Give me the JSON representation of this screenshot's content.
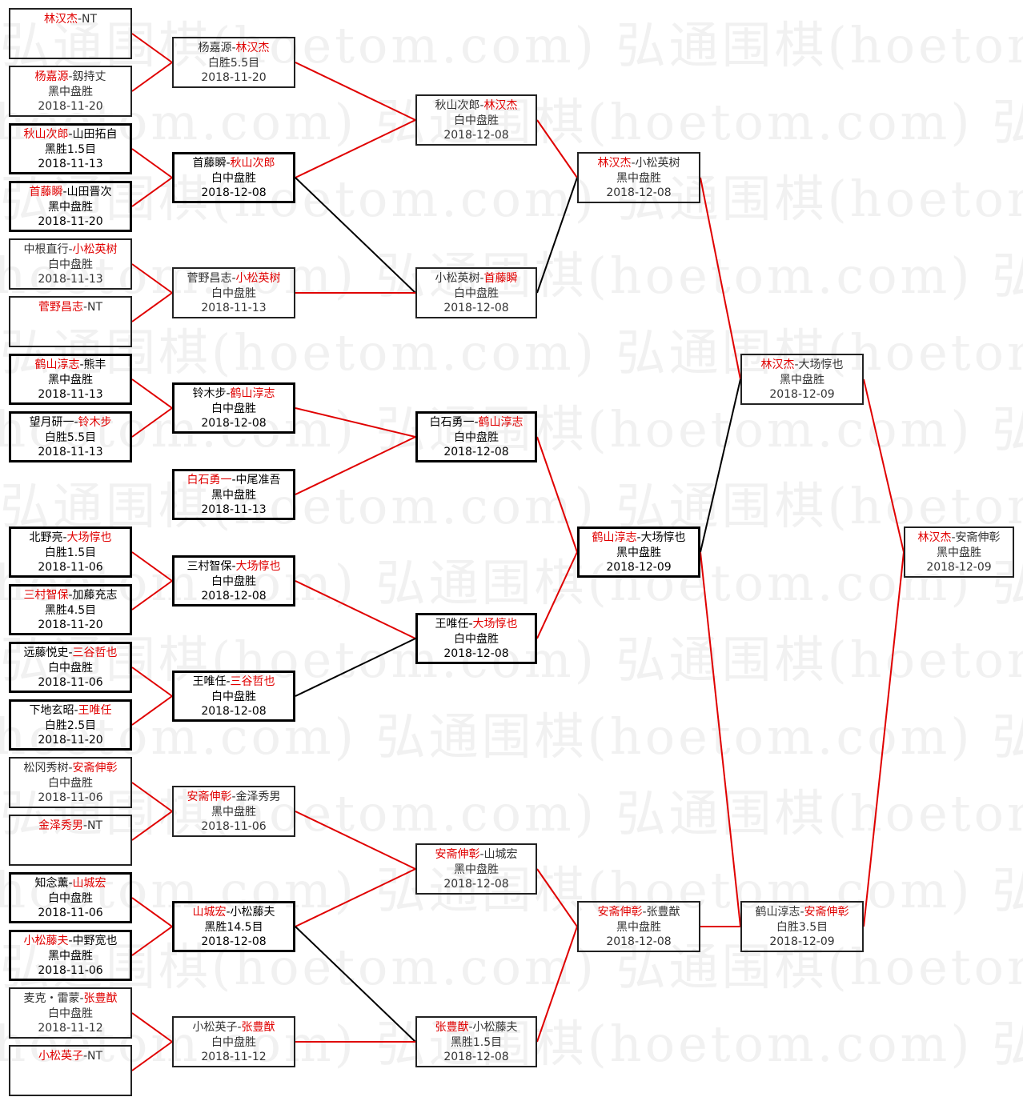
{
  "watermark": "弘通围棋(hoetom.com)",
  "colors": {
    "winner": "#e00000",
    "winner_line": "#e00000",
    "loser_line": "#000000"
  },
  "separator": "-",
  "columns": [
    [
      {
        "p1": "林汉杰",
        "p2": "NT",
        "winner": 1,
        "result": "",
        "date": "",
        "bold": false
      },
      {
        "p1": "杨嘉源",
        "p2": "釼持丈",
        "winner": 1,
        "result": "黑中盘胜",
        "date": "2018-11-20",
        "bold": false
      },
      {
        "p1": "秋山次郎",
        "p2": "山田拓自",
        "winner": 1,
        "result": "黑胜1.5目",
        "date": "2018-11-13",
        "bold": true
      },
      {
        "p1": "首藤瞬",
        "p2": "山田晋次",
        "winner": 1,
        "result": "黑中盘胜",
        "date": "2018-11-20",
        "bold": true
      },
      {
        "p1": "中根直行",
        "p2": "小松英树",
        "winner": 2,
        "result": "白中盘胜",
        "date": "2018-11-13",
        "bold": false
      },
      {
        "p1": "菅野昌志",
        "p2": "NT",
        "winner": 1,
        "result": "",
        "date": "",
        "bold": false
      },
      {
        "p1": "鹤山淳志",
        "p2": "熊丰",
        "winner": 1,
        "result": "黑中盘胜",
        "date": "2018-11-13",
        "bold": true
      },
      {
        "p1": "望月研一",
        "p2": "铃木步",
        "winner": 2,
        "result": "白胜5.5目",
        "date": "2018-11-13",
        "bold": true
      },
      {
        "p1": "北野亮",
        "p2": "大场惇也",
        "winner": 2,
        "result": "白胜1.5目",
        "date": "2018-11-06",
        "bold": true
      },
      {
        "p1": "三村智保",
        "p2": "加藤充志",
        "winner": 1,
        "result": "黑胜4.5目",
        "date": "2018-11-20",
        "bold": true
      },
      {
        "p1": "远藤悦史",
        "p2": "三谷哲也",
        "winner": 2,
        "result": "白中盘胜",
        "date": "2018-11-06",
        "bold": true
      },
      {
        "p1": "下地玄昭",
        "p2": "王唯任",
        "winner": 2,
        "result": "白胜2.5目",
        "date": "2018-11-20",
        "bold": true
      },
      {
        "p1": "松冈秀树",
        "p2": "安斋伸彰",
        "winner": 2,
        "result": "白中盘胜",
        "date": "2018-11-06",
        "bold": false
      },
      {
        "p1": "金泽秀男",
        "p2": "NT",
        "winner": 1,
        "result": "",
        "date": "",
        "bold": false
      },
      {
        "p1": "知念薰",
        "p2": "山城宏",
        "winner": 2,
        "result": "白中盘胜",
        "date": "2018-11-06",
        "bold": true
      },
      {
        "p1": "小松藤夫",
        "p2": "中野宽也",
        "winner": 1,
        "result": "黑中盘胜",
        "date": "2018-11-06",
        "bold": true
      },
      {
        "p1": "麦克・雷蒙",
        "p2": "张豊猷",
        "winner": 2,
        "result": "白中盘胜",
        "date": "2018-11-12",
        "bold": false
      },
      {
        "p1": "小松英子",
        "p2": "NT",
        "winner": 1,
        "result": "",
        "date": "",
        "bold": false
      }
    ],
    [
      {
        "p1": "杨嘉源",
        "p2": "林汉杰",
        "winner": 2,
        "result": "白胜5.5目",
        "date": "2018-11-20",
        "bold": false
      },
      {
        "p1": "首藤瞬",
        "p2": "秋山次郎",
        "winner": 2,
        "result": "白中盘胜",
        "date": "2018-12-08",
        "bold": true
      },
      {
        "p1": "菅野昌志",
        "p2": "小松英树",
        "winner": 2,
        "result": "白中盘胜",
        "date": "2018-11-13",
        "bold": false
      },
      {
        "p1": "铃木步",
        "p2": "鹤山淳志",
        "winner": 2,
        "result": "白中盘胜",
        "date": "2018-12-08",
        "bold": true
      },
      {
        "p1": "白石勇一",
        "p2": "中尾准吾",
        "winner": 1,
        "result": "黑中盘胜",
        "date": "2018-11-13",
        "bold": true
      },
      {
        "p1": "三村智保",
        "p2": "大场惇也",
        "winner": 2,
        "result": "白中盘胜",
        "date": "2018-12-08",
        "bold": true
      },
      {
        "p1": "王唯任",
        "p2": "三谷哲也",
        "winner": 2,
        "result": "白中盘胜",
        "date": "2018-12-08",
        "bold": true
      },
      {
        "p1": "安斋伸彰",
        "p2": "金泽秀男",
        "winner": 1,
        "result": "黑中盘胜",
        "date": "2018-11-06",
        "bold": false
      },
      {
        "p1": "山城宏",
        "p2": "小松藤夫",
        "winner": 1,
        "result": "黑胜14.5目",
        "date": "2018-12-08",
        "bold": true
      },
      {
        "p1": "小松英子",
        "p2": "张豊猷",
        "winner": 2,
        "result": "白中盘胜",
        "date": "2018-11-12",
        "bold": false
      }
    ],
    [
      {
        "p1": "秋山次郎",
        "p2": "林汉杰",
        "winner": 2,
        "result": "白中盘胜",
        "date": "2018-12-08",
        "bold": false
      },
      {
        "p1": "小松英树",
        "p2": "首藤瞬",
        "winner": 2,
        "result": "白中盘胜",
        "date": "2018-12-08",
        "bold": false
      },
      {
        "p1": "白石勇一",
        "p2": "鹤山淳志",
        "winner": 2,
        "result": "白中盘胜",
        "date": "2018-12-08",
        "bold": true
      },
      {
        "p1": "王唯任",
        "p2": "大场惇也",
        "winner": 2,
        "result": "白中盘胜",
        "date": "2018-12-08",
        "bold": true
      },
      {
        "p1": "安斋伸彰",
        "p2": "山城宏",
        "winner": 1,
        "result": "黑中盘胜",
        "date": "2018-12-08",
        "bold": false
      },
      {
        "p1": "张豊猷",
        "p2": "小松藤夫",
        "winner": 1,
        "result": "黑胜1.5目",
        "date": "2018-12-08",
        "bold": false
      }
    ],
    [
      {
        "p1": "林汉杰",
        "p2": "小松英树",
        "winner": 1,
        "result": "黑中盘胜",
        "date": "2018-12-08",
        "bold": false
      },
      {
        "p1": "鹤山淳志",
        "p2": "大场惇也",
        "winner": 1,
        "result": "黑中盘胜",
        "date": "2018-12-09",
        "bold": true
      },
      {
        "p1": "安斋伸彰",
        "p2": "张豊猷",
        "winner": 1,
        "result": "黑中盘胜",
        "date": "2018-12-08",
        "bold": false
      }
    ],
    [
      {
        "p1": "林汉杰",
        "p2": "大场惇也",
        "winner": 1,
        "result": "黑中盘胜",
        "date": "2018-12-09",
        "bold": false
      },
      {
        "p1": "鹤山淳志",
        "p2": "安斋伸彰",
        "winner": 2,
        "result": "白胜3.5目",
        "date": "2018-12-09",
        "bold": false
      }
    ],
    [
      {
        "p1": "林汉杰",
        "p2": "安斋伸彰",
        "winner": 1,
        "result": "黑中盘胜",
        "date": "2018-12-09",
        "bold": false
      }
    ]
  ],
  "links": [
    {
      "from": [
        0,
        0
      ],
      "to": [
        1,
        0
      ],
      "path": "winner"
    },
    {
      "from": [
        0,
        1
      ],
      "to": [
        1,
        0
      ],
      "path": "winner"
    },
    {
      "from": [
        0,
        2
      ],
      "to": [
        1,
        1
      ],
      "path": "winner"
    },
    {
      "from": [
        0,
        3
      ],
      "to": [
        1,
        1
      ],
      "path": "winner"
    },
    {
      "from": [
        0,
        4
      ],
      "to": [
        1,
        2
      ],
      "path": "winner"
    },
    {
      "from": [
        0,
        5
      ],
      "to": [
        1,
        2
      ],
      "path": "winner"
    },
    {
      "from": [
        0,
        6
      ],
      "to": [
        1,
        3
      ],
      "path": "winner"
    },
    {
      "from": [
        0,
        7
      ],
      "to": [
        1,
        3
      ],
      "path": "winner"
    },
    {
      "from": [
        0,
        8
      ],
      "to": [
        1,
        5
      ],
      "path": "winner"
    },
    {
      "from": [
        0,
        9
      ],
      "to": [
        1,
        5
      ],
      "path": "winner"
    },
    {
      "from": [
        0,
        10
      ],
      "to": [
        1,
        6
      ],
      "path": "winner"
    },
    {
      "from": [
        0,
        11
      ],
      "to": [
        1,
        6
      ],
      "path": "winner"
    },
    {
      "from": [
        0,
        12
      ],
      "to": [
        1,
        7
      ],
      "path": "winner"
    },
    {
      "from": [
        0,
        13
      ],
      "to": [
        1,
        7
      ],
      "path": "winner"
    },
    {
      "from": [
        0,
        14
      ],
      "to": [
        1,
        8
      ],
      "path": "winner"
    },
    {
      "from": [
        0,
        15
      ],
      "to": [
        1,
        8
      ],
      "path": "winner"
    },
    {
      "from": [
        0,
        16
      ],
      "to": [
        1,
        9
      ],
      "path": "winner"
    },
    {
      "from": [
        0,
        17
      ],
      "to": [
        1,
        9
      ],
      "path": "winner"
    },
    {
      "from": [
        1,
        0
      ],
      "to": [
        2,
        0
      ],
      "path": "winner"
    },
    {
      "from": [
        1,
        1
      ],
      "to": [
        2,
        0
      ],
      "path": "winner"
    },
    {
      "from": [
        1,
        1
      ],
      "to": [
        2,
        1
      ],
      "path": "loser"
    },
    {
      "from": [
        1,
        2
      ],
      "to": [
        2,
        1
      ],
      "path": "winner"
    },
    {
      "from": [
        1,
        3
      ],
      "to": [
        2,
        2
      ],
      "path": "winner"
    },
    {
      "from": [
        1,
        4
      ],
      "to": [
        2,
        2
      ],
      "path": "winner"
    },
    {
      "from": [
        1,
        5
      ],
      "to": [
        2,
        3
      ],
      "path": "winner"
    },
    {
      "from": [
        1,
        6
      ],
      "to": [
        2,
        3
      ],
      "path": "loser"
    },
    {
      "from": [
        1,
        7
      ],
      "to": [
        2,
        4
      ],
      "path": "winner"
    },
    {
      "from": [
        1,
        8
      ],
      "to": [
        2,
        4
      ],
      "path": "winner"
    },
    {
      "from": [
        1,
        8
      ],
      "to": [
        2,
        5
      ],
      "path": "loser"
    },
    {
      "from": [
        1,
        9
      ],
      "to": [
        2,
        5
      ],
      "path": "winner"
    },
    {
      "from": [
        2,
        0
      ],
      "to": [
        3,
        0
      ],
      "path": "winner"
    },
    {
      "from": [
        2,
        1
      ],
      "to": [
        3,
        0
      ],
      "path": "loser"
    },
    {
      "from": [
        2,
        2
      ],
      "to": [
        3,
        1
      ],
      "path": "winner"
    },
    {
      "from": [
        2,
        3
      ],
      "to": [
        3,
        1
      ],
      "path": "winner"
    },
    {
      "from": [
        2,
        4
      ],
      "to": [
        3,
        2
      ],
      "path": "winner"
    },
    {
      "from": [
        2,
        5
      ],
      "to": [
        3,
        2
      ],
      "path": "winner"
    },
    {
      "from": [
        3,
        0
      ],
      "to": [
        4,
        0
      ],
      "path": "winner"
    },
    {
      "from": [
        3,
        1
      ],
      "to": [
        4,
        0
      ],
      "path": "loser"
    },
    {
      "from": [
        3,
        1
      ],
      "to": [
        4,
        1
      ],
      "path": "winner"
    },
    {
      "from": [
        3,
        2
      ],
      "to": [
        4,
        1
      ],
      "path": "winner"
    },
    {
      "from": [
        4,
        0
      ],
      "to": [
        5,
        0
      ],
      "path": "winner"
    },
    {
      "from": [
        4,
        1
      ],
      "to": [
        5,
        0
      ],
      "path": "winner"
    }
  ]
}
